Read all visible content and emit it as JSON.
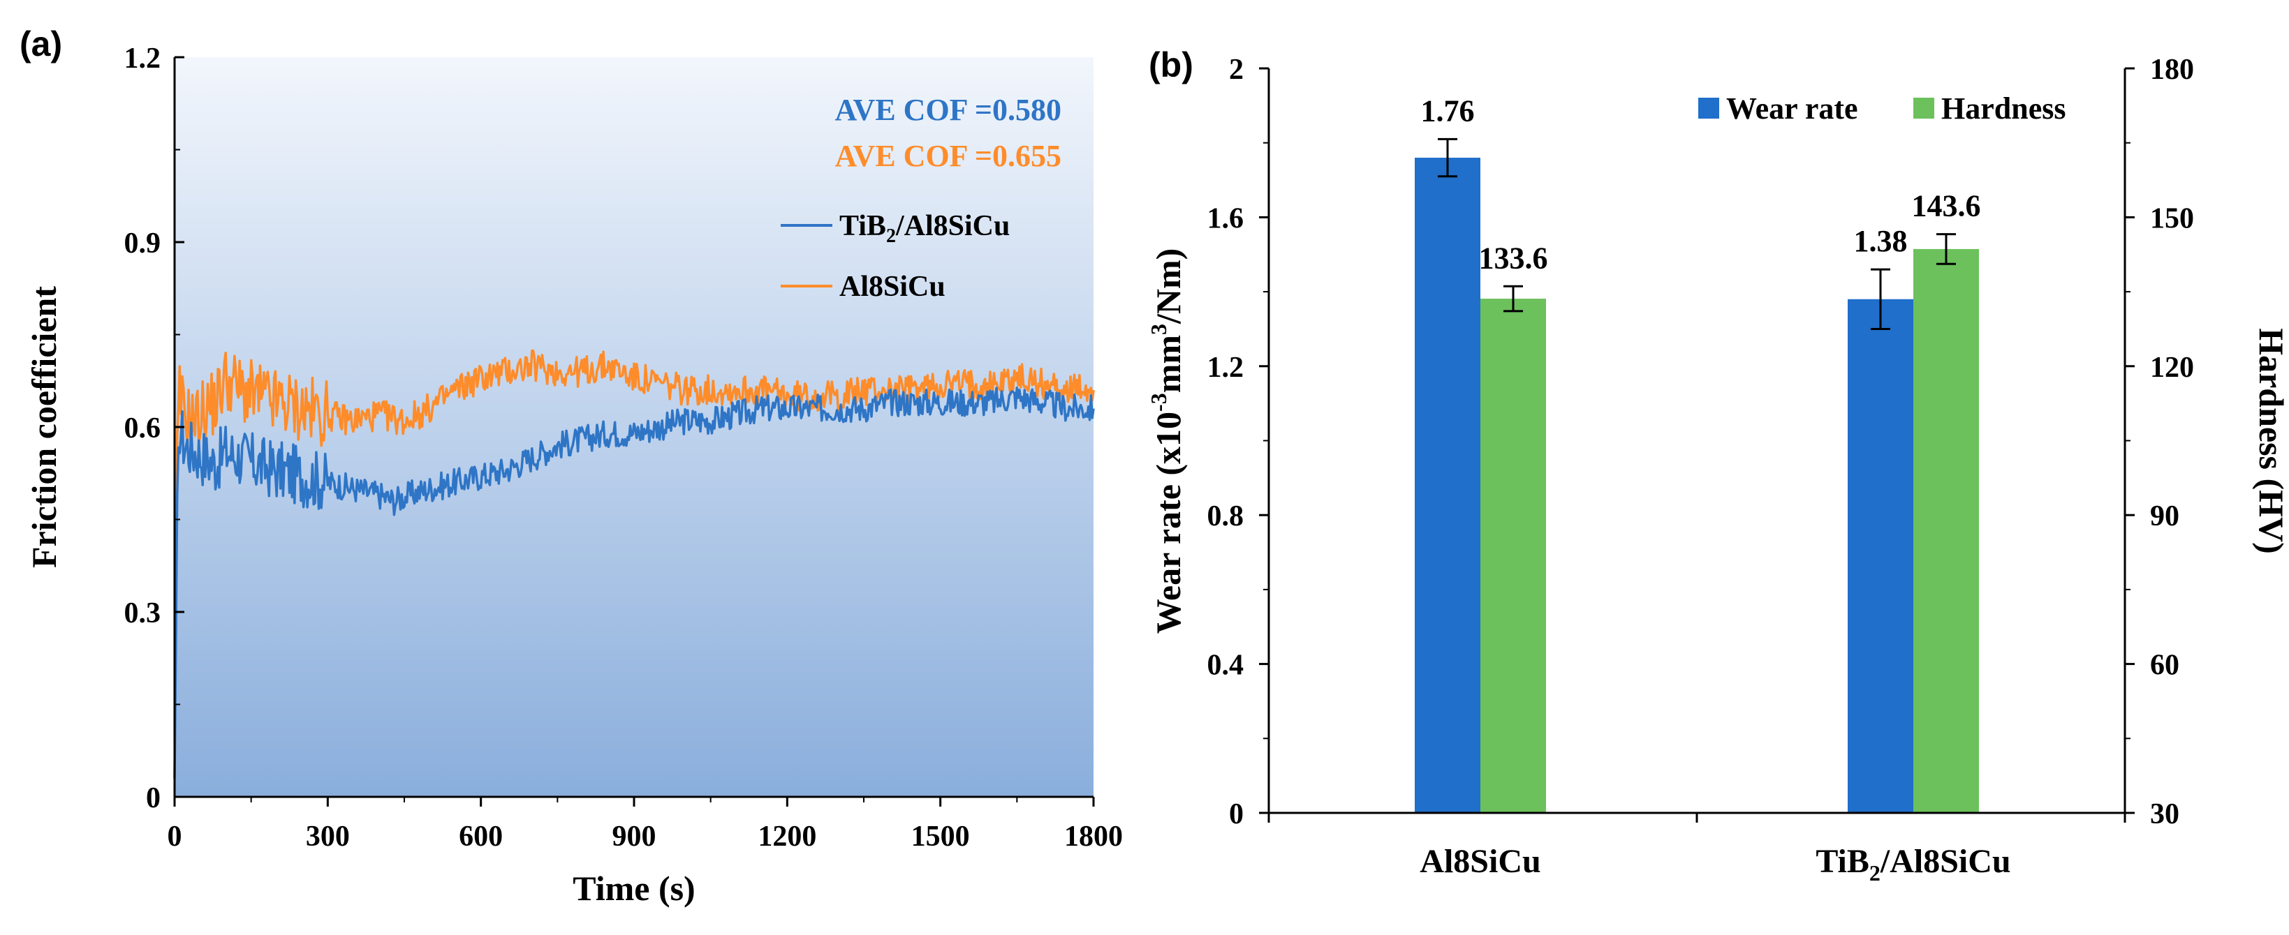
{
  "colors": {
    "blue_series": "#2e75c6",
    "orange_series": "#ff8c2a",
    "blue_bar": "#1f6fcb",
    "green_bar": "#6cc15c",
    "plot_bg_top": "#f2f6fc",
    "plot_bg_bottom": "#8aaedc",
    "axis": "#000000"
  },
  "chart_data": [
    {
      "type": "line",
      "panel_label": "(a)",
      "xlabel": "Time (s)",
      "ylabel": "Friction coefficient",
      "xlim": [
        0,
        1800
      ],
      "ylim": [
        0,
        1.2
      ],
      "xticks": [
        "0",
        "300",
        "600",
        "900",
        "1200",
        "1500",
        "1800"
      ],
      "yticks": [
        "0",
        "0.3",
        "0.6",
        "0.9",
        "1.2"
      ],
      "background": "vertical gradient, light to blue",
      "legend_position": "right, below annotations",
      "annotations": [
        {
          "text": "AVE COF =0.580",
          "color": "blue"
        },
        {
          "text": "AVE COF =0.655",
          "color": "orange"
        }
      ],
      "series": [
        {
          "name": "TiB2/Al8SiCu",
          "name_main": "TiB",
          "name_sub": "2",
          "name_rest": "/Al8SiCu",
          "color_key": "blue_series",
          "x": [
            0,
            5,
            10,
            20,
            40,
            60,
            80,
            100,
            130,
            160,
            200,
            250,
            300,
            350,
            400,
            430,
            460,
            500,
            550,
            600,
            650,
            700,
            750,
            800,
            850,
            900,
            950,
            1000,
            1050,
            1100,
            1150,
            1200,
            1250,
            1300,
            1350,
            1400,
            1450,
            1500,
            1550,
            1600,
            1650,
            1700,
            1750,
            1800
          ],
          "y": [
            0.03,
            0.45,
            0.6,
            0.57,
            0.56,
            0.55,
            0.54,
            0.56,
            0.55,
            0.54,
            0.53,
            0.52,
            0.51,
            0.5,
            0.49,
            0.48,
            0.49,
            0.5,
            0.51,
            0.52,
            0.53,
            0.55,
            0.57,
            0.58,
            0.59,
            0.59,
            0.6,
            0.61,
            0.61,
            0.62,
            0.63,
            0.63,
            0.63,
            0.63,
            0.63,
            0.64,
            0.64,
            0.64,
            0.64,
            0.64,
            0.65,
            0.64,
            0.63,
            0.63
          ]
        },
        {
          "name": "Al8SiCu",
          "name_main": "Al8SiCu",
          "name_sub": "",
          "name_rest": "",
          "color_key": "orange_series",
          "x": [
            0,
            5,
            10,
            20,
            40,
            60,
            80,
            100,
            130,
            160,
            200,
            250,
            300,
            350,
            400,
            450,
            500,
            550,
            600,
            650,
            700,
            750,
            800,
            850,
            900,
            950,
            1000,
            1050,
            1100,
            1150,
            1200,
            1250,
            1300,
            1350,
            1400,
            1450,
            1500,
            1550,
            1600,
            1650,
            1700,
            1750,
            1800
          ],
          "y": [
            0.03,
            0.55,
            0.65,
            0.62,
            0.61,
            0.63,
            0.64,
            0.68,
            0.66,
            0.65,
            0.64,
            0.63,
            0.62,
            0.61,
            0.62,
            0.61,
            0.63,
            0.66,
            0.68,
            0.69,
            0.7,
            0.69,
            0.69,
            0.7,
            0.68,
            0.67,
            0.66,
            0.66,
            0.66,
            0.66,
            0.65,
            0.65,
            0.65,
            0.66,
            0.66,
            0.66,
            0.67,
            0.67,
            0.67,
            0.68,
            0.67,
            0.66,
            0.66
          ]
        }
      ]
    },
    {
      "type": "bar",
      "panel_label": "(b)",
      "categories": [
        "Al8SiCu",
        "TiB2/Al8SiCu"
      ],
      "category_parts": [
        {
          "main": "Al8SiCu",
          "sub": "",
          "rest": ""
        },
        {
          "main": "TiB",
          "sub": "2",
          "rest": "/Al8SiCu"
        }
      ],
      "ylabel_left_parts": {
        "main": "Wear rate (x10",
        "sup1": "-3",
        "mid": "mm",
        "sup2": "3",
        "end": "/Nm)"
      },
      "ylabel_right": "Hardness (HV)",
      "ylim_left": [
        0,
        2
      ],
      "ylim_right": [
        30,
        180
      ],
      "yticks_left": [
        "0",
        "0.4",
        "0.8",
        "1.2",
        "1.6",
        "2"
      ],
      "yticks_right": [
        "30",
        "60",
        "90",
        "120",
        "150",
        "180"
      ],
      "legend_position": "top-right",
      "series": [
        {
          "name": "Wear rate",
          "axis": "left",
          "color_key": "blue_bar",
          "values": [
            1.76,
            1.38
          ],
          "errors": [
            0.05,
            0.08
          ],
          "labels": [
            "1.76",
            "1.38"
          ]
        },
        {
          "name": "Hardness",
          "axis": "right",
          "color_key": "green_bar",
          "values": [
            133.6,
            143.6
          ],
          "errors": [
            2.5,
            3.0
          ],
          "labels": [
            "133.6",
            "143.6"
          ]
        }
      ]
    }
  ]
}
